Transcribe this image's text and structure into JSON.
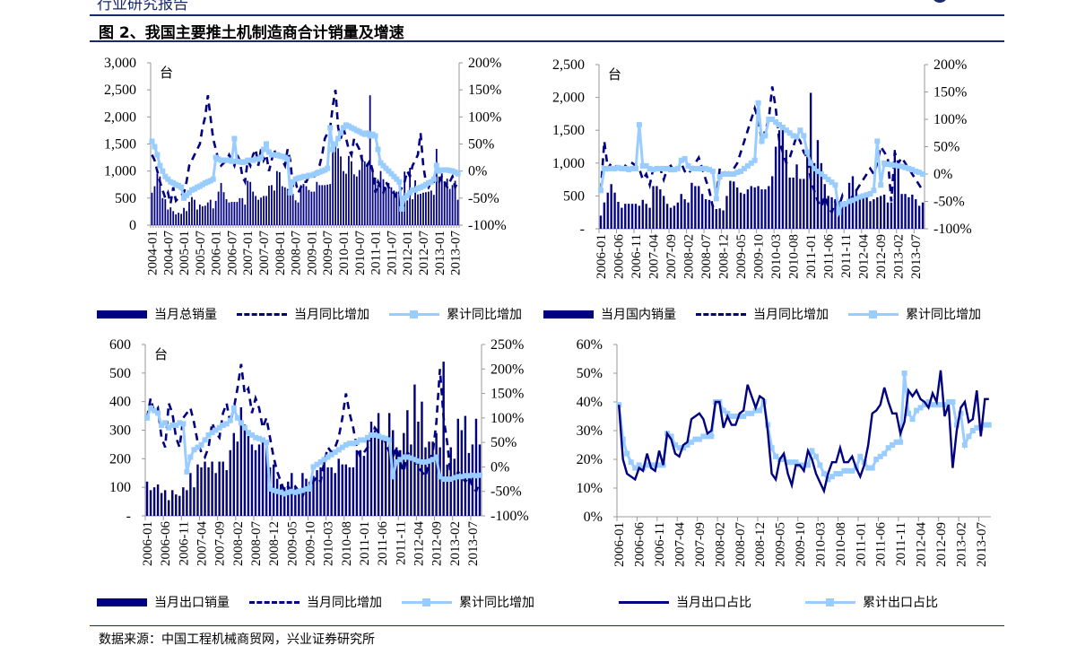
{
  "header": {
    "report_label": "行业研究报告",
    "figure_title": "图 2、我国主要推土机制造商合计销量及增速"
  },
  "footer": {
    "source": "数据来源：中国工程机械商贸网，兴业证券研究所"
  },
  "colors": {
    "bar": "#000080",
    "dashed": "#000080",
    "cumulative": "#99ccff",
    "rule": "#1a2a6c"
  },
  "chart_data": [
    {
      "type": "bar+line",
      "unit_label": "台",
      "start": "2004-01",
      "x_tick_labels": [
        "2004-01",
        "2004-07",
        "2005-01",
        "2005-07",
        "2006-01",
        "2006-07",
        "2007-01",
        "2007-07",
        "2008-01",
        "2008-07",
        "2009-01",
        "2009-07",
        "2010-01",
        "2010-07",
        "2011-01",
        "2011-07",
        "2012-01",
        "2012-07",
        "2013-01",
        "2013-07"
      ],
      "x_tick_step": 6,
      "ylim_left": [
        0,
        3000
      ],
      "left_ticks": [
        "0",
        "500",
        "1,000",
        "1,500",
        "2,000",
        "2,500",
        "3,000"
      ],
      "ylim_right": [
        -100,
        200
      ],
      "right_ticks": [
        "-100%",
        "-50%",
        "0%",
        "50%",
        "100%",
        "150%",
        "200%"
      ],
      "legend": [
        "当月总销量",
        "当月同比增加",
        "累计同比增加"
      ],
      "bars": [
        600,
        720,
        950,
        900,
        500,
        480,
        290,
        330,
        260,
        200,
        230,
        210,
        320,
        260,
        430,
        520,
        470,
        290,
        380,
        350,
        360,
        420,
        470,
        310,
        450,
        620,
        780,
        610,
        480,
        420,
        430,
        430,
        430,
        500,
        500,
        380,
        820,
        800,
        620,
        540,
        470,
        510,
        540,
        540,
        730,
        740,
        640,
        1000,
        980,
        720,
        700,
        670,
        620,
        580,
        460,
        420,
        740,
        760,
        720,
        650,
        620,
        620,
        800,
        740,
        740,
        740,
        750,
        760,
        1450,
        1500,
        1420,
        1270,
        1000,
        950,
        1280,
        1180,
        940,
        900,
        1020,
        1300,
        1180,
        1150,
        2400,
        1050,
        880,
        750,
        1000,
        850,
        700,
        780,
        700,
        640,
        620,
        600,
        280,
        990,
        460,
        1060,
        480,
        830,
        570,
        580,
        600,
        610,
        620,
        640,
        560,
        1410,
        900,
        960,
        810,
        860,
        670,
        740,
        820,
        470
      ],
      "yoy": [
        30,
        20,
        0,
        -20,
        -35,
        -50,
        -40,
        -60,
        -30,
        -55,
        -50,
        -45,
        -40,
        -20,
        10,
        20,
        30,
        40,
        50,
        80,
        100,
        140,
        100,
        60,
        40,
        20,
        10,
        15,
        20,
        30,
        20,
        10,
        30,
        20,
        -10,
        -20,
        20,
        10,
        30,
        40,
        10,
        40,
        20,
        30,
        0,
        20,
        40,
        20,
        30,
        20,
        10,
        40,
        20,
        -30,
        -20,
        -40,
        -30,
        -20,
        -20,
        -10,
        -10,
        -10,
        0,
        10,
        30,
        60,
        70,
        80,
        120,
        150,
        80,
        60,
        80,
        60,
        40,
        30,
        60,
        50,
        40,
        20,
        10,
        10,
        20,
        0,
        -40,
        -20,
        -30,
        -40,
        -20,
        -30,
        -40,
        -40,
        -50,
        -40,
        -30,
        -20,
        0,
        -10,
        10,
        20,
        30,
        70,
        10,
        -20,
        -30,
        -20,
        -20,
        -10,
        -20,
        -10,
        -20,
        -30,
        -20,
        -10,
        -30,
        -20
      ],
      "cumulative": [
        55,
        45,
        30,
        10,
        0,
        -10,
        -15,
        -20,
        -22,
        -25,
        -27,
        -30,
        -50,
        -45,
        -40,
        -35,
        -33,
        -30,
        -28,
        -25,
        -22,
        -20,
        -18,
        -15,
        25,
        22,
        20,
        20,
        20,
        20,
        18,
        60,
        18,
        17,
        16,
        17,
        20,
        20,
        20,
        22,
        22,
        25,
        40,
        50,
        35,
        30,
        30,
        30,
        28,
        27,
        25,
        22,
        -40,
        -20,
        -15,
        -13,
        -12,
        -10,
        -10,
        -8,
        -8,
        -6,
        -4,
        -2,
        0,
        2,
        5,
        80,
        40,
        50,
        60,
        70,
        80,
        85,
        83,
        80,
        78,
        75,
        73,
        70,
        68,
        70,
        65,
        68,
        65,
        40,
        15,
        10,
        5,
        0,
        -5,
        -10,
        -15,
        -20,
        -70,
        -50,
        -45,
        -40,
        -35,
        -35,
        -32,
        -30,
        -28,
        -25,
        -22,
        -20,
        -15,
        10,
        0,
        2,
        2,
        2,
        1,
        0,
        -2,
        -5
      ]
    },
    {
      "type": "bar+line",
      "unit_label": "台",
      "start": "2006-01",
      "x_tick_labels": [
        "2006-01",
        "2006-06",
        "2006-11",
        "2007-04",
        "2007-09",
        "2008-02",
        "2008-07",
        "2008-12",
        "2009-05",
        "2009-10",
        "2010-03",
        "2010-08",
        "2011-01",
        "2011-06",
        "2011-11",
        "2012-04",
        "2012-09",
        "2013-02",
        "2013-07"
      ],
      "x_tick_step": 5,
      "ylim_left": [
        0,
        2500
      ],
      "left_ticks": [
        "-",
        "500",
        "1,000",
        "1,500",
        "2,000",
        "2,500"
      ],
      "ylim_right": [
        -100,
        200
      ],
      "right_ticks": [
        "-100%",
        "-50%",
        "0%",
        "50%",
        "100%",
        "150%",
        "200%"
      ],
      "legend": [
        "当月国内销量",
        "当月同比增加",
        "累计同比增加"
      ],
      "bars": [
        200,
        400,
        550,
        680,
        550,
        410,
        320,
        380,
        380,
        380,
        380,
        350,
        440,
        380,
        320,
        650,
        650,
        600,
        500,
        380,
        320,
        350,
        400,
        530,
        450,
        400,
        700,
        650,
        650,
        530,
        450,
        440,
        370,
        300,
        310,
        280,
        500,
        730,
        720,
        630,
        550,
        530,
        600,
        650,
        630,
        650,
        600,
        600,
        650,
        800,
        1250,
        1500,
        1580,
        1200,
        780,
        780,
        980,
        760,
        760,
        1100,
        2070,
        1000,
        1350,
        1000,
        680,
        500,
        480,
        450,
        420,
        380,
        400,
        700,
        800,
        600,
        450,
        480,
        530,
        420,
        450,
        480,
        500,
        520,
        400,
        400,
        1200,
        950,
        530,
        530,
        480,
        520,
        450,
        350,
        400
      ],
      "yoy": [
        -30,
        60,
        10,
        20,
        15,
        10,
        5,
        15,
        10,
        20,
        15,
        10,
        -10,
        0,
        -20,
        10,
        15,
        10,
        -10,
        10,
        15,
        5,
        10,
        20,
        5,
        0,
        10,
        20,
        30,
        10,
        -10,
        -30,
        -60,
        -40,
        10,
        5,
        0,
        5,
        10,
        20,
        40,
        60,
        80,
        100,
        120,
        100,
        60,
        80,
        100,
        160,
        120,
        60,
        40,
        20,
        30,
        50,
        70,
        60,
        40,
        30,
        -10,
        -30,
        -50,
        -60,
        -40,
        -60,
        -70,
        -50,
        -60,
        -40,
        -60,
        -50,
        -40,
        -30,
        -20,
        -10,
        0,
        10,
        0,
        20,
        50,
        40,
        30,
        -50,
        40,
        20,
        30,
        20,
        10,
        0,
        -10,
        -20,
        -30
      ],
      "cumulative": [
        -30,
        10,
        10,
        10,
        10,
        12,
        10,
        10,
        8,
        10,
        10,
        90,
        15,
        15,
        10,
        8,
        10,
        10,
        10,
        10,
        8,
        8,
        10,
        25,
        28,
        15,
        10,
        10,
        10,
        10,
        10,
        8,
        5,
        -45,
        -5,
        0,
        0,
        0,
        0,
        3,
        5,
        10,
        15,
        20,
        25,
        130,
        60,
        70,
        100,
        100,
        95,
        90,
        85,
        80,
        75,
        70,
        68,
        80,
        70,
        40,
        20,
        10,
        5,
        0,
        -5,
        -10,
        -15,
        -20,
        -70,
        -55,
        -55,
        -50,
        -48,
        -45,
        -42,
        -40,
        -38,
        -36,
        -30,
        60,
        -20,
        20,
        18,
        17,
        16,
        15,
        14,
        12,
        10,
        8,
        5,
        3,
        0
      ]
    },
    {
      "type": "bar+line",
      "unit_label": "台",
      "start": "2006-01",
      "x_tick_labels": [
        "2006-01",
        "2006-06",
        "2006-11",
        "2007-04",
        "2007-09",
        "2008-02",
        "2008-07",
        "2008-12",
        "2009-05",
        "2009-10",
        "2010-03",
        "2010-08",
        "2011-01",
        "2011-06",
        "2011-11",
        "2012-04",
        "2012-09",
        "2013-02",
        "2013-07"
      ],
      "x_tick_step": 5,
      "ylim_left": [
        0,
        600
      ],
      "left_ticks": [
        "-",
        "100",
        "200",
        "300",
        "400",
        "500",
        "600"
      ],
      "ylim_right": [
        -100,
        250
      ],
      "right_ticks": [
        "-100%",
        "-50%",
        "0%",
        "50%",
        "100%",
        "150%",
        "200%",
        "250%"
      ],
      "legend": [
        "当月出口销量",
        "当月同比增加",
        "累计同比增加"
      ],
      "bars": [
        120,
        90,
        100,
        110,
        80,
        90,
        55,
        90,
        75,
        70,
        100,
        90,
        150,
        100,
        180,
        170,
        190,
        170,
        190,
        150,
        190,
        190,
        160,
        230,
        290,
        260,
        380,
        320,
        280,
        250,
        230,
        250,
        270,
        260,
        170,
        180,
        130,
        110,
        100,
        120,
        150,
        100,
        90,
        150,
        130,
        120,
        140,
        160,
        170,
        200,
        170,
        170,
        150,
        200,
        180,
        180,
        170,
        170,
        230,
        230,
        210,
        280,
        330,
        300,
        360,
        280,
        270,
        360,
        300,
        240,
        230,
        290,
        370,
        250,
        460,
        330,
        400,
        240,
        260,
        260,
        290,
        240,
        540,
        180,
        240,
        200,
        340,
        300,
        350,
        220,
        250,
        340,
        250
      ],
      "yoy": [
        100,
        140,
        110,
        120,
        60,
        40,
        130,
        110,
        60,
        40,
        100,
        110,
        120,
        90,
        50,
        30,
        20,
        40,
        90,
        70,
        60,
        110,
        130,
        90,
        120,
        160,
        210,
        150,
        160,
        110,
        140,
        120,
        80,
        100,
        60,
        20,
        -10,
        -30,
        -50,
        -40,
        -50,
        -40,
        -50,
        -60,
        -40,
        -50,
        -30,
        -20,
        -30,
        10,
        40,
        30,
        40,
        60,
        100,
        150,
        110,
        80,
        40,
        20,
        30,
        40,
        60,
        80,
        70,
        60,
        50,
        30,
        20,
        40,
        10,
        -10,
        30,
        20,
        10,
        0,
        -10,
        -20,
        10,
        30,
        90,
        200,
        100,
        50,
        -20,
        -30,
        -10,
        -20,
        -30,
        -20,
        -40,
        -50,
        -30
      ],
      "cumulative": [
        100,
        120,
        115,
        110,
        85,
        90,
        80,
        85,
        85,
        90,
        88,
        -10,
        20,
        35,
        40,
        45,
        55,
        65,
        70,
        75,
        80,
        85,
        88,
        95,
        120,
        100,
        90,
        80,
        70,
        65,
        60,
        58,
        55,
        50,
        -45,
        -48,
        -50,
        -52,
        -55,
        -52,
        -50,
        -52,
        -50,
        -48,
        -45,
        -45,
        0,
        5,
        10,
        15,
        20,
        25,
        30,
        35,
        40,
        45,
        48,
        48,
        50,
        55,
        55,
        60,
        65,
        65,
        63,
        60,
        58,
        55,
        -20,
        10,
        15,
        20,
        20,
        18,
        15,
        12,
        10,
        10,
        12,
        15,
        20,
        -20,
        -25,
        -25,
        -25,
        -22,
        -20,
        -20,
        -18,
        -18,
        -17,
        -18,
        -17
      ]
    },
    {
      "type": "line",
      "start": "2006-01",
      "x_tick_labels": [
        "2006-01",
        "2006-06",
        "2006-11",
        "2007-04",
        "2007-09",
        "2008-02",
        "2008-07",
        "2008-12",
        "2009-05",
        "2009-10",
        "2010-03",
        "2010-08",
        "2011-01",
        "2011-06",
        "2011-11",
        "2012-04",
        "2012-09",
        "2013-02",
        "2013-07"
      ],
      "x_tick_step": 5,
      "ylim_left": [
        0,
        60
      ],
      "left_ticks": [
        "0%",
        "10%",
        "20%",
        "30%",
        "40%",
        "50%",
        "60%"
      ],
      "legend": [
        "当月出口占比",
        "累计出口占比"
      ],
      "monthly_share": [
        39,
        20,
        15,
        14,
        13,
        17,
        16,
        22,
        17,
        16,
        23,
        18,
        29,
        27,
        22,
        21,
        25,
        26,
        34,
        35,
        36,
        34,
        29,
        30,
        40,
        40,
        31,
        35,
        32,
        32,
        36,
        37,
        46,
        42,
        38,
        42,
        41,
        30,
        15,
        13,
        20,
        22,
        15,
        11,
        18,
        18,
        16,
        23,
        20,
        15,
        12,
        9,
        15,
        19,
        19,
        24,
        19,
        19,
        21,
        17,
        14,
        18,
        25,
        36,
        37,
        39,
        45,
        40,
        36,
        36,
        29,
        33,
        44,
        42,
        44,
        41,
        40,
        38,
        43,
        40,
        51,
        35,
        39,
        17,
        30,
        38,
        40,
        33,
        34,
        44,
        28,
        41,
        41
      ],
      "cumulative_share": [
        39,
        27,
        22,
        19,
        17,
        18,
        17,
        18,
        18,
        18,
        18,
        18,
        29,
        28,
        25,
        24,
        24,
        25,
        26,
        27,
        27,
        28,
        28,
        28,
        40,
        40,
        37,
        36,
        35,
        35,
        35,
        35,
        36,
        36,
        37,
        37,
        40,
        32,
        24,
        21,
        20,
        20,
        19,
        19,
        19,
        18,
        18,
        18,
        23,
        21,
        18,
        15,
        13,
        14,
        15,
        15,
        16,
        16,
        16,
        17,
        21,
        19,
        17,
        17,
        20,
        21,
        22,
        24,
        25,
        26,
        26,
        50,
        36,
        34,
        37,
        38,
        39,
        40,
        39,
        39,
        39,
        39,
        40,
        40,
        32,
        36,
        25,
        28,
        30,
        31,
        31,
        32,
        32
      ]
    }
  ]
}
